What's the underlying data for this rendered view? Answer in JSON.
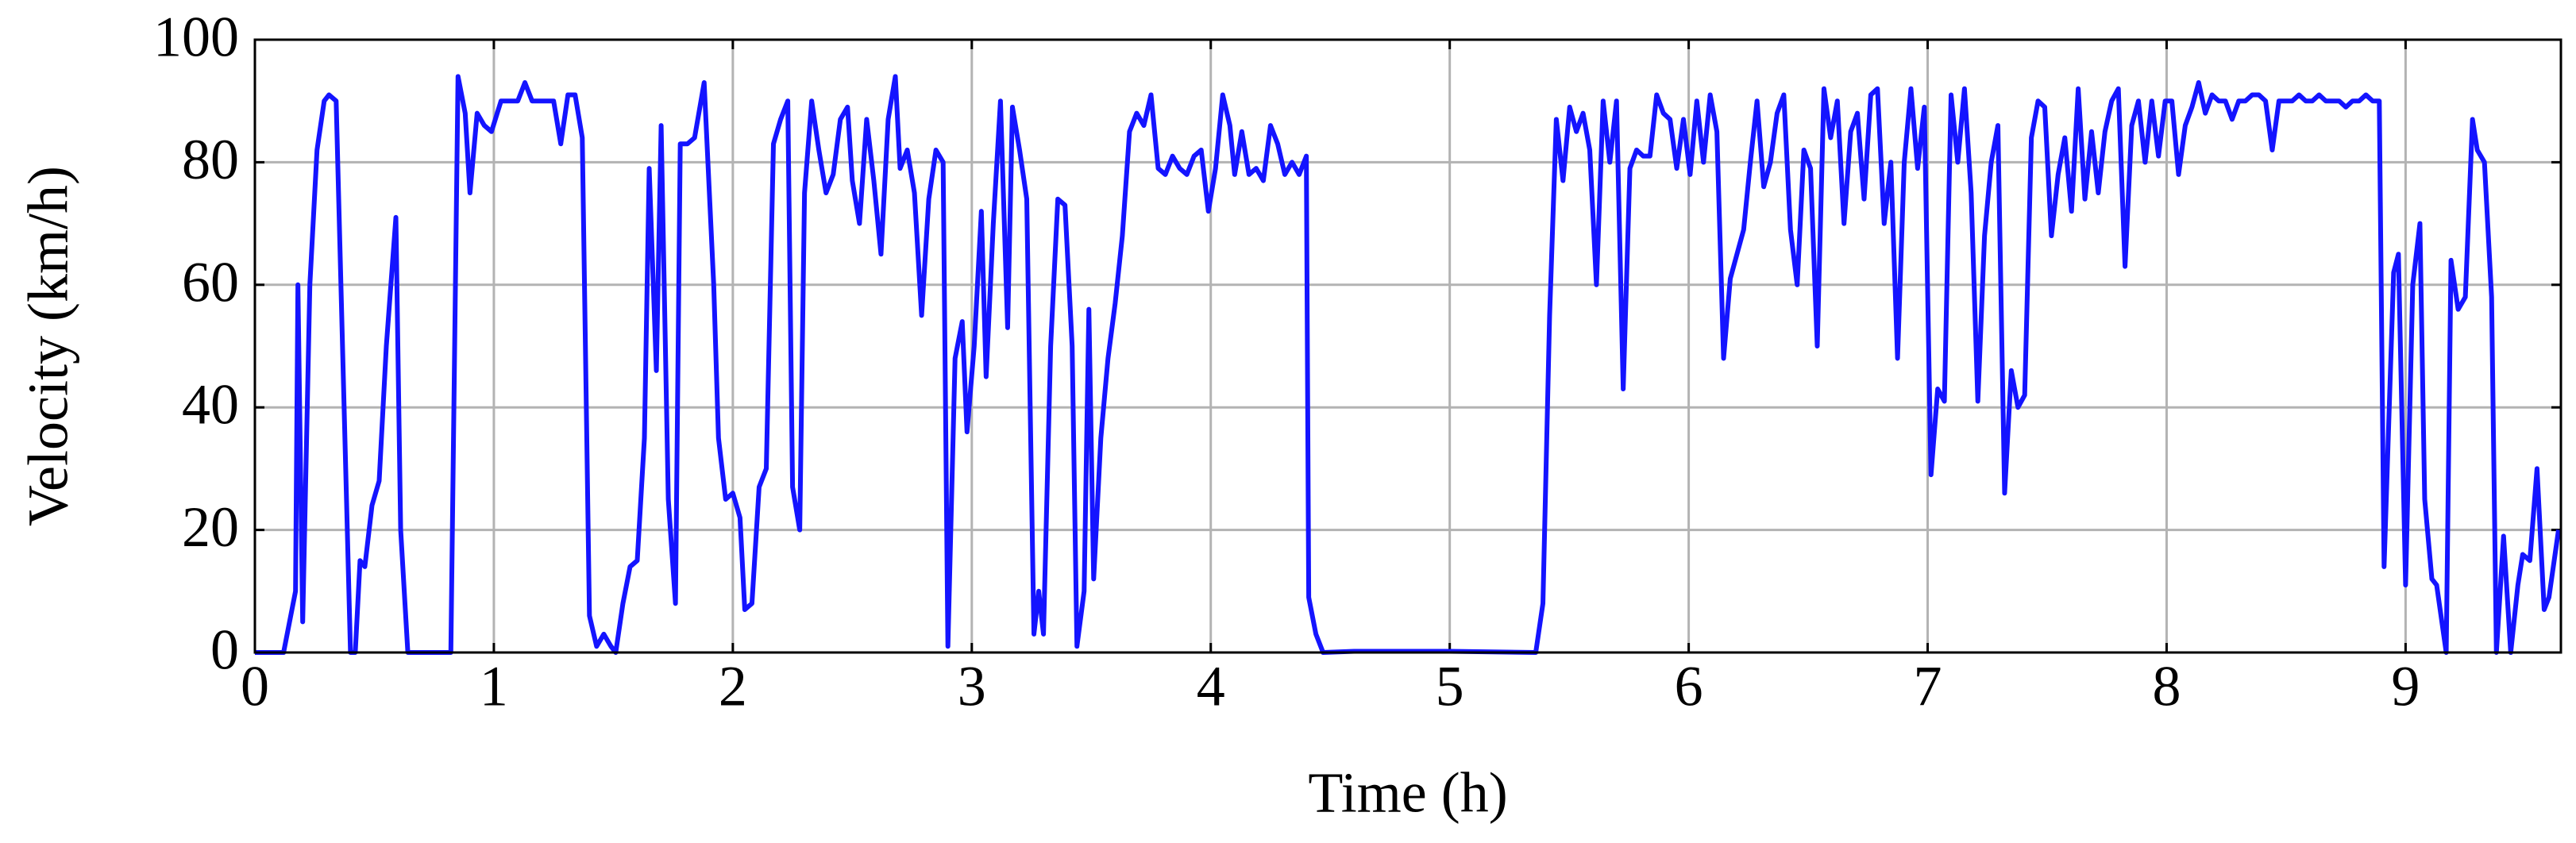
{
  "chart_data": {
    "type": "line",
    "xlabel": "Time (h)",
    "ylabel": "Velocity (km/h)",
    "color": "#1414ff",
    "grid": true,
    "xlim": [
      0,
      9.65
    ],
    "xticks": [
      0,
      1,
      2,
      3,
      4,
      5,
      6,
      7,
      8,
      9
    ],
    "ylim": [
      0,
      100
    ],
    "yticks": [
      0,
      20,
      40,
      60,
      80,
      100
    ],
    "x": [
      0,
      0.12,
      0.17,
      0.18,
      0.2,
      0.23,
      0.26,
      0.29,
      0.31,
      0.34,
      0.38,
      0.4,
      0.42,
      0.44,
      0.46,
      0.49,
      0.52,
      0.55,
      0.59,
      0.61,
      0.64,
      0.7,
      0.82,
      0.85,
      0.88,
      0.9,
      0.93,
      0.96,
      0.99,
      1.03,
      1.07,
      1.1,
      1.13,
      1.16,
      1.2,
      1.25,
      1.28,
      1.31,
      1.34,
      1.37,
      1.4,
      1.43,
      1.46,
      1.49,
      1.51,
      1.54,
      1.57,
      1.6,
      1.63,
      1.65,
      1.68,
      1.7,
      1.73,
      1.76,
      1.78,
      1.81,
      1.84,
      1.88,
      1.92,
      1.94,
      1.97,
      2.0,
      2.03,
      2.05,
      2.08,
      2.11,
      2.14,
      2.17,
      2.2,
      2.23,
      2.25,
      2.28,
      2.3,
      2.33,
      2.36,
      2.39,
      2.42,
      2.45,
      2.48,
      2.5,
      2.53,
      2.56,
      2.59,
      2.62,
      2.65,
      2.68,
      2.7,
      2.73,
      2.76,
      2.79,
      2.82,
      2.85,
      2.88,
      2.9,
      2.93,
      2.96,
      2.98,
      3.01,
      3.04,
      3.06,
      3.09,
      3.12,
      3.15,
      3.17,
      3.2,
      3.23,
      3.26,
      3.28,
      3.3,
      3.33,
      3.36,
      3.39,
      3.42,
      3.44,
      3.47,
      3.49,
      3.51,
      3.54,
      3.57,
      3.6,
      3.63,
      3.66,
      3.69,
      3.72,
      3.75,
      3.78,
      3.81,
      3.84,
      3.87,
      3.9,
      3.93,
      3.96,
      3.99,
      4.02,
      4.05,
      4.08,
      4.1,
      4.13,
      4.16,
      4.19,
      4.22,
      4.25,
      4.28,
      4.31,
      4.34,
      4.37,
      4.4,
      4.41,
      4.44,
      4.47,
      4.6,
      5.0,
      5.36,
      5.39,
      5.418,
      5.446,
      5.474,
      5.502,
      5.53,
      5.558,
      5.586,
      5.614,
      5.642,
      5.67,
      5.698,
      5.726,
      5.754,
      5.782,
      5.81,
      5.838,
      5.866,
      5.894,
      5.922,
      5.95,
      5.978,
      6.006,
      6.034,
      6.062,
      6.09,
      6.118,
      6.146,
      6.174,
      6.202,
      6.23,
      6.258,
      6.286,
      6.314,
      6.342,
      6.37,
      6.398,
      6.426,
      6.454,
      6.482,
      6.51,
      6.538,
      6.566,
      6.594,
      6.622,
      6.65,
      6.678,
      6.706,
      6.734,
      6.762,
      6.79,
      6.818,
      6.846,
      6.874,
      6.902,
      6.93,
      6.958,
      6.986,
      7.014,
      7.042,
      7.07,
      7.098,
      7.126,
      7.154,
      7.182,
      7.21,
      7.238,
      7.266,
      7.294,
      7.322,
      7.35,
      7.378,
      7.406,
      7.434,
      7.462,
      7.49,
      7.518,
      7.546,
      7.574,
      7.602,
      7.63,
      7.658,
      7.686,
      7.714,
      7.742,
      7.77,
      7.798,
      7.826,
      7.854,
      7.882,
      7.91,
      7.938,
      7.966,
      7.994,
      8.022,
      8.05,
      8.078,
      8.106,
      8.134,
      8.162,
      8.19,
      8.218,
      8.246,
      8.274,
      8.302,
      8.33,
      8.358,
      8.386,
      8.414,
      8.442,
      8.47,
      8.498,
      8.526,
      8.554,
      8.582,
      8.61,
      8.638,
      8.666,
      8.694,
      8.722,
      8.75,
      8.778,
      8.806,
      8.834,
      8.862,
      8.89,
      8.91,
      8.95,
      8.97,
      9.0,
      9.03,
      9.06,
      9.08,
      9.11,
      9.13,
      9.17,
      9.19,
      9.22,
      9.25,
      9.28,
      9.3,
      9.33,
      9.36,
      9.38,
      9.41,
      9.44,
      9.47,
      9.49,
      9.52,
      9.55,
      9.58,
      9.6,
      9.64
    ],
    "values": [
      0,
      0,
      10,
      60,
      5,
      60,
      82,
      90,
      91,
      90,
      30,
      0,
      0,
      15,
      14,
      24,
      28,
      50,
      71,
      20,
      0,
      0,
      0,
      94,
      88,
      75,
      88,
      86,
      85,
      90,
      90,
      90,
      93,
      90,
      90,
      90,
      83,
      91,
      91,
      84,
      6,
      1,
      3,
      1,
      0,
      8,
      14,
      15,
      35,
      79,
      46,
      86,
      25,
      8,
      83,
      83,
      84,
      93,
      60,
      35,
      25,
      26,
      22,
      7,
      8,
      27,
      30,
      83,
      87,
      90,
      27,
      20,
      75,
      90,
      82,
      75,
      78,
      87,
      89,
      77,
      70,
      87,
      77,
      65,
      87,
      94,
      79,
      82,
      75,
      55,
      74,
      82,
      80,
      1,
      48,
      54,
      36,
      50,
      72,
      45,
      70,
      90,
      53,
      89,
      82,
      74,
      3,
      10,
      3,
      50,
      74,
      73,
      50,
      1,
      10,
      56,
      12,
      35,
      48,
      57,
      68,
      85,
      88,
      86,
      91,
      79,
      78,
      81,
      79,
      78,
      81,
      82,
      72,
      79,
      91,
      86,
      78,
      85,
      78,
      79,
      77,
      86,
      83,
      78,
      80,
      78,
      81,
      9,
      3,
      0,
      0.2,
      0.2,
      0,
      8,
      55,
      87,
      77,
      89,
      85,
      88,
      82,
      60,
      90,
      80,
      90,
      43,
      79,
      82,
      81,
      81,
      91,
      88,
      87,
      79,
      87,
      78,
      90,
      80,
      91,
      85,
      48,
      61,
      65,
      69,
      80,
      90,
      76,
      80,
      88,
      91,
      69,
      60,
      82,
      79,
      50,
      92,
      84,
      90,
      70,
      85,
      88,
      74,
      91,
      92,
      70,
      80,
      48,
      80,
      92,
      79,
      89,
      29,
      43,
      41,
      91,
      80,
      92,
      75,
      41,
      68,
      80,
      86,
      26,
      46,
      40,
      42,
      84,
      90,
      89,
      68,
      78,
      84,
      72,
      92,
      74,
      85,
      75,
      85,
      90,
      92,
      63,
      86,
      90,
      80,
      90,
      81,
      90,
      90,
      78,
      86,
      89,
      93,
      88,
      91,
      90,
      90,
      87,
      90,
      90,
      91,
      91,
      90,
      82,
      90,
      90,
      90,
      91,
      90,
      90,
      91,
      90,
      90,
      90,
      89,
      90,
      90,
      91,
      90,
      90,
      14,
      62,
      65,
      11,
      60,
      70,
      25,
      12,
      11,
      0,
      64,
      56,
      58,
      87,
      82,
      80,
      58,
      0,
      19,
      0,
      11,
      16,
      15,
      30,
      7,
      9,
      20
    ]
  }
}
